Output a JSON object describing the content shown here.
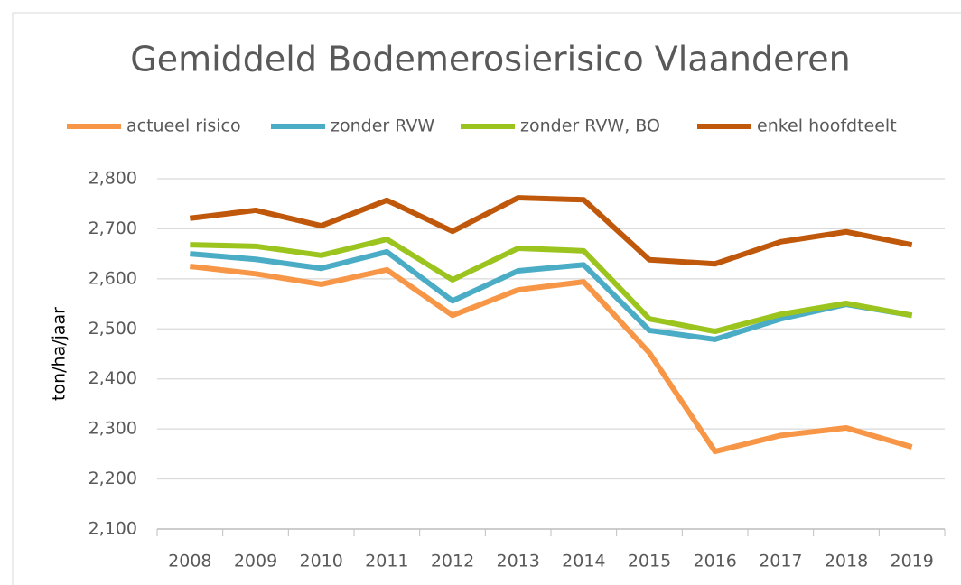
{
  "chart_data": {
    "type": "line",
    "title": "Gemiddeld Bodemerosierisico Vlaanderen",
    "y_label": "ton/ha/jaar",
    "categories": [
      "2008",
      "2009",
      "2010",
      "2011",
      "2012",
      "2013",
      "2014",
      "2015",
      "2016",
      "2017",
      "2018",
      "2019"
    ],
    "series": [
      {
        "name": "actueel risico",
        "color": "#f79646",
        "values": [
          2625,
          2610,
          2589,
          2618,
          2527,
          2578,
          2594,
          2452,
          2255,
          2287,
          2302,
          2264
        ]
      },
      {
        "name": "zonder RVW",
        "color": "#4bacc6",
        "values": [
          2650,
          2639,
          2621,
          2654,
          2556,
          2616,
          2628,
          2497,
          2479,
          2520,
          2549,
          2527
        ]
      },
      {
        "name": "zonder RVW, BO",
        "color": "#9cc41e",
        "values": [
          2668,
          2665,
          2647,
          2679,
          2598,
          2661,
          2656,
          2520,
          2495,
          2529,
          2551,
          2527
        ]
      },
      {
        "name": "enkel hoofdteelt",
        "color": "#c0580b",
        "values": [
          2721,
          2737,
          2706,
          2757,
          2695,
          2762,
          2758,
          2638,
          2630,
          2674,
          2694,
          2668
        ]
      }
    ],
    "ylim": [
      2100,
      2800
    ],
    "yticks": [
      {
        "value": 2100,
        "label": "2,100"
      },
      {
        "value": 2200,
        "label": "2,200"
      },
      {
        "value": 2300,
        "label": "2,300"
      },
      {
        "value": 2400,
        "label": "2,400"
      },
      {
        "value": 2500,
        "label": "2,500"
      },
      {
        "value": 2600,
        "label": "2,600"
      },
      {
        "value": 2700,
        "label": "2,700"
      },
      {
        "value": 2800,
        "label": "2,800"
      }
    ],
    "grid": true,
    "legend": "top"
  }
}
